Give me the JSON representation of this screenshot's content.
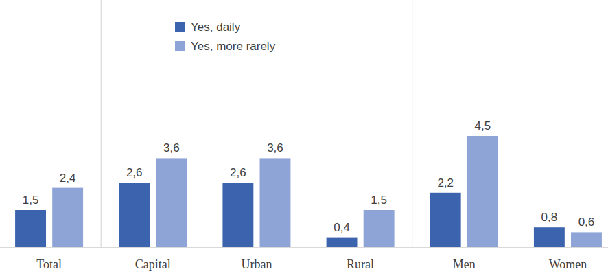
{
  "chart_data": {
    "type": "bar",
    "categories": [
      "Total",
      "Capital",
      "Urban",
      "Rural",
      "Men",
      "Women"
    ],
    "series": [
      {
        "name": "Yes, daily",
        "color": "#3c63ae",
        "values": [
          1.5,
          2.6,
          2.6,
          0.4,
          2.2,
          0.8
        ],
        "value_labels": [
          "1,5",
          "2,6",
          "2,6",
          "0,4",
          "2,2",
          "0,8"
        ]
      },
      {
        "name": "Yes, more rarely",
        "color": "#8fa4d6",
        "values": [
          2.4,
          3.6,
          3.6,
          1.5,
          4.5,
          0.6
        ],
        "value_labels": [
          "2,4",
          "3,6",
          "3,6",
          "1,5",
          "4,5",
          "0,6"
        ]
      }
    ],
    "data_labels": true,
    "legend": "top",
    "tick_labels": "x"
  }
}
